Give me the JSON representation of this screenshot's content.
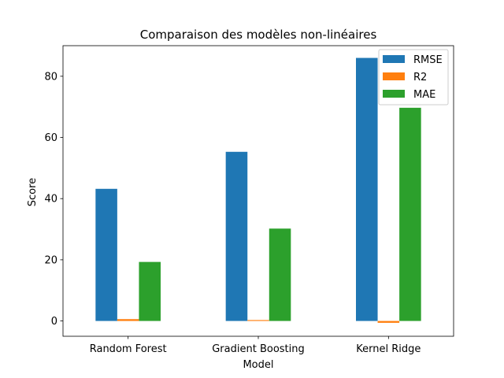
{
  "chart_data": {
    "type": "bar",
    "title": "Comparaison des modèles non-linéaires",
    "xlabel": "Model",
    "ylabel": "Score",
    "categories": [
      "Random Forest",
      "Gradient Boosting",
      "Kernel Ridge"
    ],
    "series": [
      {
        "name": "RMSE",
        "values": [
          43.2,
          55.3,
          86.0
        ],
        "color": "#1f77b4"
      },
      {
        "name": "R2",
        "values": [
          0.6,
          0.3,
          -0.6
        ],
        "color": "#ff7f0e"
      },
      {
        "name": "MAE",
        "values": [
          19.3,
          30.2,
          69.7
        ],
        "color": "#2ca02c"
      }
    ],
    "ylim": [
      -5,
      90
    ],
    "yticks": [
      "0",
      "20",
      "40",
      "60",
      "80"
    ],
    "ytick_values": [
      0,
      20,
      40,
      60,
      80
    ],
    "grid": false,
    "legend_position": "top-right"
  }
}
